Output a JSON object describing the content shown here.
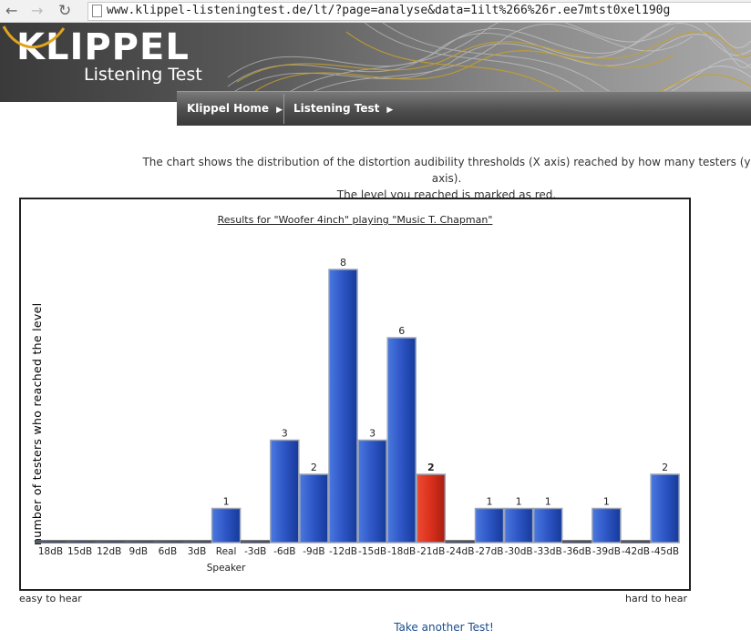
{
  "browser": {
    "url": "www.klippel-listeningtest.de/lt/?page=analyse&data=1ilt%266%26r.ee7mtst0xel190g"
  },
  "header": {
    "logo_text": "KLIPPEL",
    "logo_subtitle": "Listening Test",
    "menu": [
      {
        "label": "Klippel Home"
      },
      {
        "label": "Listening Test"
      }
    ]
  },
  "intro": {
    "line1": "The chart shows the distribution of the distortion audibility thresholds (X axis) reached by how many testers (y axis).",
    "line2": "The level you reached is marked as red."
  },
  "chart_data": {
    "type": "bar",
    "title": "Results for \"Woofer 4inch\" playing \"Music T. Chapman\"",
    "ylabel": "number of testers who reached the level",
    "xlabel": "",
    "categories": [
      "18dB",
      "15dB",
      "12dB",
      "9dB",
      "6dB",
      "3dB",
      "Real Speaker",
      "-3dB",
      "-6dB",
      "-9dB",
      "-12dB",
      "-15dB",
      "-18dB",
      "-21dB",
      "-24dB",
      "-27dB",
      "-30dB",
      "-33dB",
      "-36dB",
      "-39dB",
      "-42dB",
      "-45dB"
    ],
    "values": [
      0,
      0,
      0,
      0,
      0,
      0,
      1,
      0,
      3,
      2,
      8,
      3,
      6,
      2,
      0,
      1,
      1,
      1,
      0,
      1,
      0,
      2
    ],
    "highlight_index": 13,
    "colors": {
      "bar": "#2d55c4",
      "highlight": "#d8301c"
    },
    "ylim": [
      0,
      8
    ],
    "grid": false
  },
  "footer": {
    "easy": "easy to hear",
    "hard": "hard to hear",
    "another_link": "Take another Test!"
  }
}
